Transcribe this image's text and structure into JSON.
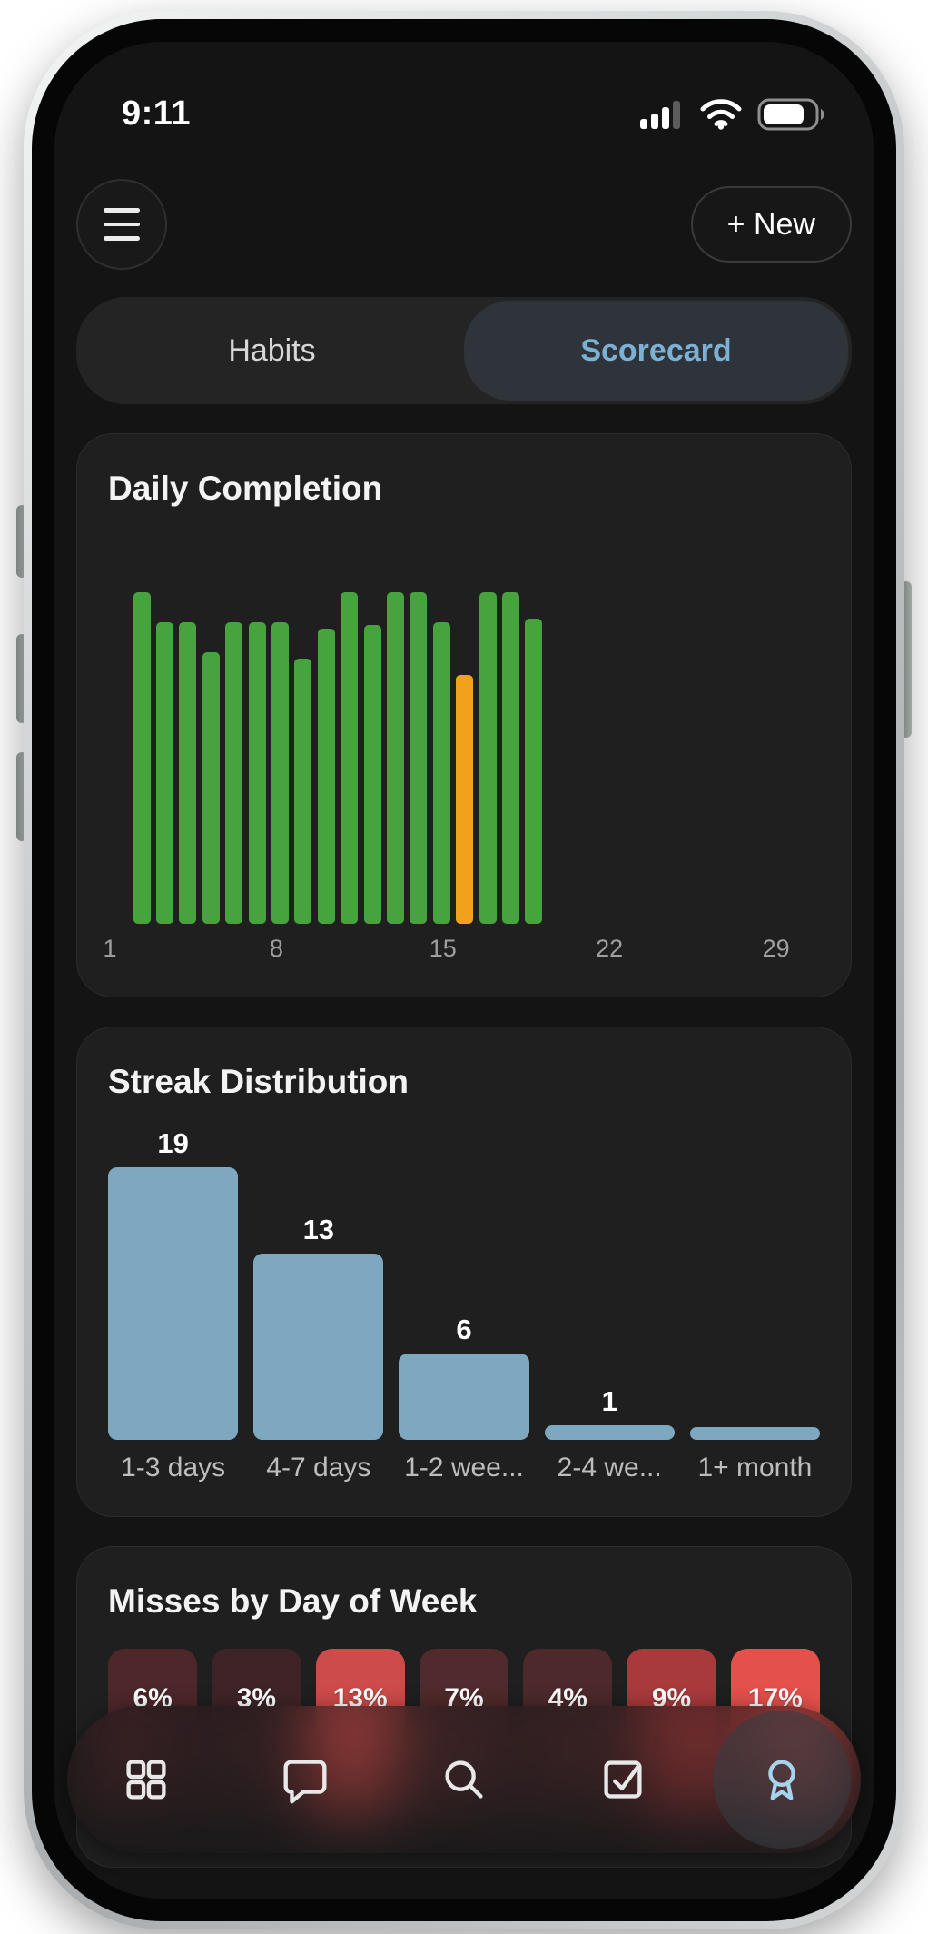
{
  "status_bar": {
    "time": "9:11",
    "signal_bars_filled": 3,
    "signal_bars_total": 4,
    "battery_fill_ratio": 0.72,
    "icons": [
      "cellular-signal-icon",
      "wifi-icon",
      "battery-icon"
    ]
  },
  "header": {
    "menu_icon": "hamburger-menu",
    "new_button_label": "+ New"
  },
  "tabs": {
    "items": [
      {
        "label": "Habits",
        "active": false
      },
      {
        "label": "Scorecard",
        "active": true
      }
    ],
    "active_text_color": "#7cb1d6"
  },
  "chart_data": [
    {
      "id": "daily_completion",
      "type": "bar",
      "title": "Daily Completion",
      "xlabel": "day of month",
      "x_ticks": [
        1,
        8,
        15,
        22,
        29
      ],
      "x_range": [
        1,
        31
      ],
      "start_day": 1,
      "values_pct": [
        100,
        91,
        91,
        82,
        91,
        91,
        91,
        80,
        89,
        100,
        90,
        100,
        100,
        91,
        75,
        100,
        100,
        92
      ],
      "highlight_day": 15,
      "bar_color": "#46a33e",
      "highlight_color": "#f2a11c",
      "grid": false,
      "legend": false
    },
    {
      "id": "streak_distribution",
      "type": "bar",
      "title": "Streak Distribution",
      "categories": [
        "1-3 days",
        "4-7 days",
        "1-2 wee...",
        "2-4 we...",
        "1+ month"
      ],
      "values": [
        19,
        13,
        6,
        1,
        0
      ],
      "value_labels": [
        "19",
        "13",
        "6",
        "1",
        ""
      ],
      "bar_color": "#7ea8c0",
      "grid": false,
      "legend": false
    },
    {
      "id": "misses_by_day",
      "type": "heatmap",
      "title": "Misses by Day of Week",
      "values": [
        "6%",
        "3%",
        "13%",
        "7%",
        "4%",
        "9%",
        "17%"
      ],
      "tile_colors": [
        "#4d272a",
        "#3f2427",
        "#cd4b48",
        "#502a2c",
        "#4d292b",
        "#a83a3c",
        "#e4504b"
      ]
    }
  ],
  "nav": {
    "items": [
      {
        "icon": "grid",
        "active": false
      },
      {
        "icon": "chat",
        "active": false
      },
      {
        "icon": "search",
        "active": false
      },
      {
        "icon": "check-square",
        "active": false
      },
      {
        "icon": "award",
        "active": true
      }
    ]
  }
}
